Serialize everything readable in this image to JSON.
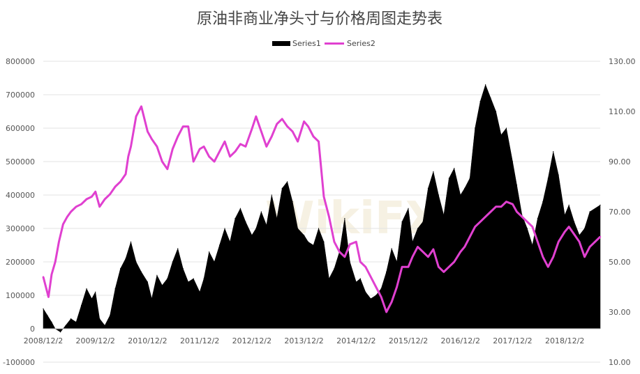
{
  "chart_data": {
    "type": "area",
    "title": "原油非商业净头寸与价格周图走势表",
    "y_left": {
      "min": -100000,
      "max": 800000,
      "ticks": [
        "-100000",
        "0",
        "100000",
        "200000",
        "300000",
        "400000",
        "500000",
        "600000",
        "700000",
        "800000"
      ]
    },
    "y_right": {
      "min": 10,
      "max": 130,
      "ticks": [
        "10.00",
        "30.00",
        "50.00",
        "70.00",
        "90.00",
        "110.00",
        "130.00"
      ]
    },
    "x_ticks": [
      "2008/12/2",
      "2009/12/2",
      "2010/12/2",
      "2011/12/2",
      "2012/12/2",
      "2013/12/2",
      "2014/12/2",
      "2015/12/2",
      "2016/12/2",
      "2017/12/2",
      "2018/12/2"
    ],
    "legend_position": "top",
    "series": [
      {
        "name": "Series1",
        "kind": "area",
        "axis": "left",
        "color": "#000000",
        "x": [
          2008.92,
          2009.0,
          2009.08,
          2009.15,
          2009.25,
          2009.35,
          2009.45,
          2009.55,
          2009.65,
          2009.75,
          2009.85,
          2009.92,
          2010.0,
          2010.1,
          2010.2,
          2010.3,
          2010.4,
          2010.5,
          2010.6,
          2010.7,
          2010.8,
          2010.92,
          2011.0,
          2011.1,
          2011.2,
          2011.3,
          2011.4,
          2011.5,
          2011.6,
          2011.7,
          2011.8,
          2011.92,
          2012.0,
          2012.1,
          2012.2,
          2012.3,
          2012.4,
          2012.5,
          2012.6,
          2012.7,
          2012.8,
          2012.92,
          2013.0,
          2013.1,
          2013.2,
          2013.3,
          2013.4,
          2013.5,
          2013.6,
          2013.7,
          2013.8,
          2013.92,
          2014.0,
          2014.1,
          2014.2,
          2014.3,
          2014.4,
          2014.5,
          2014.6,
          2014.7,
          2014.8,
          2014.92,
          2015.0,
          2015.1,
          2015.2,
          2015.3,
          2015.4,
          2015.5,
          2015.6,
          2015.7,
          2015.8,
          2015.92,
          2016.0,
          2016.1,
          2016.2,
          2016.3,
          2016.4,
          2016.5,
          2016.6,
          2016.7,
          2016.8,
          2016.92,
          2017.0,
          2017.1,
          2017.2,
          2017.3,
          2017.4,
          2017.5,
          2017.6,
          2017.7,
          2017.8,
          2017.92,
          2018.0,
          2018.1,
          2018.2,
          2018.3,
          2018.4,
          2018.5,
          2018.6,
          2018.7,
          2018.8,
          2018.92,
          2019.0,
          2019.1,
          2019.2,
          2019.3,
          2019.4,
          2019.6
        ],
        "values": [
          60000,
          40000,
          20000,
          0,
          -10000,
          10000,
          30000,
          20000,
          70000,
          120000,
          90000,
          110000,
          30000,
          10000,
          40000,
          120000,
          180000,
          210000,
          260000,
          200000,
          170000,
          140000,
          90000,
          160000,
          130000,
          150000,
          200000,
          240000,
          180000,
          140000,
          150000,
          110000,
          150000,
          230000,
          200000,
          250000,
          300000,
          260000,
          330000,
          360000,
          320000,
          280000,
          300000,
          350000,
          310000,
          400000,
          330000,
          420000,
          440000,
          380000,
          300000,
          280000,
          260000,
          250000,
          300000,
          260000,
          150000,
          180000,
          230000,
          330000,
          200000,
          140000,
          150000,
          110000,
          90000,
          100000,
          120000,
          170000,
          240000,
          200000,
          320000,
          360000,
          260000,
          300000,
          320000,
          420000,
          470000,
          400000,
          340000,
          450000,
          480000,
          400000,
          420000,
          450000,
          600000,
          680000,
          730000,
          690000,
          650000,
          580000,
          600000,
          500000,
          430000,
          340000,
          300000,
          250000,
          330000,
          380000,
          450000,
          530000,
          460000,
          340000,
          370000,
          320000,
          280000,
          300000,
          350000,
          370000
        ]
      },
      {
        "name": "Series2",
        "kind": "line",
        "axis": "right",
        "color": "#E040D0",
        "x": [
          2008.92,
          2008.97,
          2009.02,
          2009.08,
          2009.15,
          2009.22,
          2009.3,
          2009.38,
          2009.45,
          2009.55,
          2009.65,
          2009.75,
          2009.85,
          2009.92,
          2010.0,
          2010.1,
          2010.2,
          2010.3,
          2010.4,
          2010.5,
          2010.55,
          2010.6,
          2010.7,
          2010.8,
          2010.92,
          2011.0,
          2011.1,
          2011.2,
          2011.3,
          2011.4,
          2011.5,
          2011.6,
          2011.7,
          2011.8,
          2011.92,
          2012.0,
          2012.1,
          2012.2,
          2012.3,
          2012.4,
          2012.5,
          2012.6,
          2012.7,
          2012.8,
          2012.92,
          2013.0,
          2013.1,
          2013.2,
          2013.3,
          2013.4,
          2013.5,
          2013.6,
          2013.7,
          2013.8,
          2013.92,
          2014.0,
          2014.1,
          2014.2,
          2014.3,
          2014.4,
          2014.5,
          2014.6,
          2014.7,
          2014.8,
          2014.92,
          2015.0,
          2015.1,
          2015.2,
          2015.3,
          2015.4,
          2015.5,
          2015.6,
          2015.7,
          2015.8,
          2015.92,
          2016.0,
          2016.1,
          2016.2,
          2016.3,
          2016.4,
          2016.5,
          2016.6,
          2016.7,
          2016.8,
          2016.92,
          2017.0,
          2017.1,
          2017.2,
          2017.3,
          2017.4,
          2017.5,
          2017.6,
          2017.7,
          2017.8,
          2017.92,
          2018.0,
          2018.1,
          2018.2,
          2018.3,
          2018.4,
          2018.5,
          2018.6,
          2018.7,
          2018.8,
          2018.92,
          2019.0,
          2019.1,
          2019.2,
          2019.3,
          2019.4,
          2019.6
        ],
        "values": [
          44,
          40,
          36,
          45,
          50,
          58,
          65,
          68,
          70,
          72,
          73,
          75,
          76,
          78,
          72,
          75,
          77,
          80,
          82,
          85,
          92,
          96,
          108,
          112,
          102,
          99,
          96,
          90,
          87,
          95,
          100,
          104,
          104,
          90,
          95,
          96,
          92,
          90,
          94,
          98,
          92,
          94,
          97,
          96,
          103,
          108,
          102,
          96,
          100,
          105,
          107,
          104,
          102,
          98,
          106,
          104,
          100,
          98,
          76,
          68,
          58,
          54,
          52,
          57,
          58,
          50,
          48,
          44,
          40,
          36,
          30,
          34,
          40,
          48,
          48,
          52,
          56,
          54,
          52,
          55,
          48,
          46,
          48,
          50,
          54,
          56,
          60,
          64,
          66,
          68,
          70,
          72,
          72,
          74,
          73,
          70,
          68,
          66,
          64,
          58,
          52,
          48,
          52,
          58,
          62,
          64,
          61,
          58,
          52,
          56,
          60
        ]
      }
    ]
  },
  "legend": {
    "items": [
      "Series1",
      "Series2"
    ]
  },
  "watermark": "WikiFX"
}
